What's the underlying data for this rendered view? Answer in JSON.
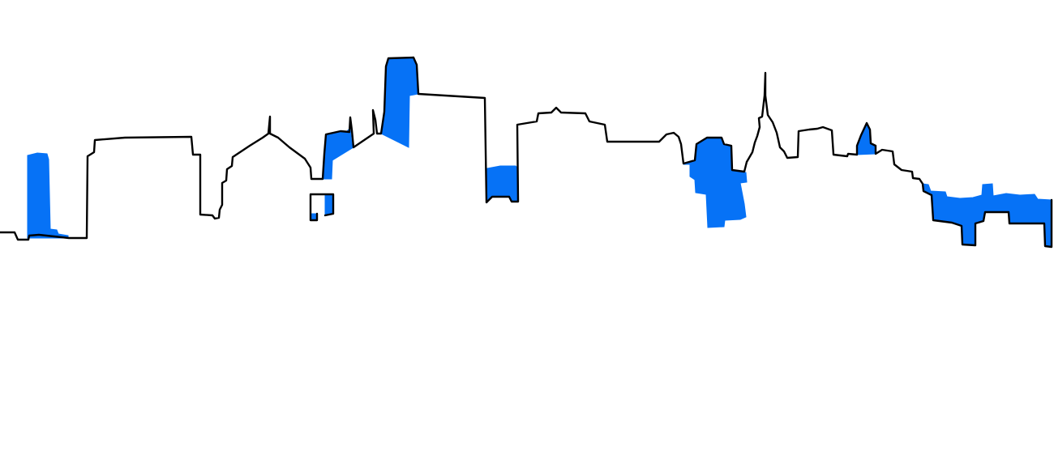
{
  "drawing": {
    "subject": "city-skyline-outline",
    "colors": {
      "background": "#ffffff",
      "outline": "#000000",
      "highlight_fill": "#0672F6"
    }
  }
}
